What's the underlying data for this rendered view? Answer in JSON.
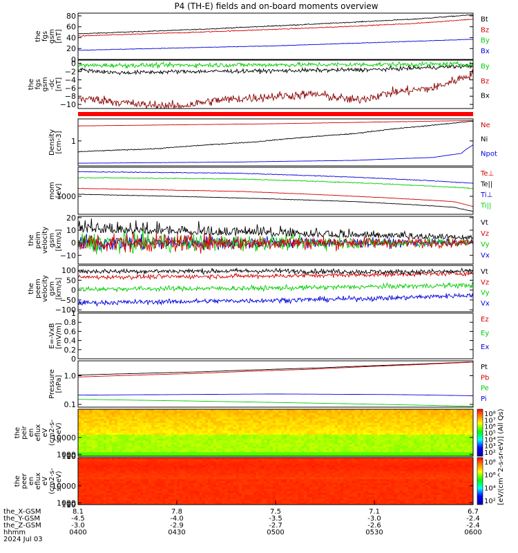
{
  "title": "P4 (TH-E) fields and on-board moments overview",
  "colors": {
    "black": "#000000",
    "red": "#d40000",
    "green": "#00cc00",
    "blue": "#0000dd",
    "bar_red": "#ff0000"
  },
  "chart_data": [
    {
      "type": "line",
      "id": "fgs_gsm",
      "ylabel_lines": [
        "the",
        "fgs",
        "gsm",
        "[nT]"
      ],
      "yticks": [
        0,
        20,
        40,
        60,
        80
      ],
      "ylim": [
        0,
        85
      ],
      "legend": [
        {
          "name": "Bt",
          "color": "#000000"
        },
        {
          "name": "Bz",
          "color": "#d40000"
        },
        {
          "name": "By",
          "color": "#00cc00"
        },
        {
          "name": "Bx",
          "color": "#0000dd"
        }
      ],
      "series": [
        {
          "name": "Bt",
          "color": "#000000",
          "knots": [
            [
              0,
              47
            ],
            [
              0.3,
              55
            ],
            [
              0.6,
              65
            ],
            [
              0.85,
              74
            ],
            [
              1,
              82
            ]
          ],
          "noise": 0.6
        },
        {
          "name": "Bz",
          "color": "#d40000",
          "knots": [
            [
              0,
              43
            ],
            [
              0.3,
              50
            ],
            [
              0.6,
              58
            ],
            [
              0.85,
              66
            ],
            [
              1,
              74
            ]
          ],
          "noise": 0.6
        },
        {
          "name": "By",
          "color": "#00cc00",
          "knots": [
            [
              0,
              -2
            ],
            [
              1,
              -2
            ]
          ],
          "noise": 0.3
        },
        {
          "name": "Bx",
          "color": "#0000dd",
          "knots": [
            [
              0,
              17
            ],
            [
              0.5,
              25
            ],
            [
              1,
              37
            ]
          ],
          "noise": 0.4
        }
      ]
    },
    {
      "type": "line",
      "id": "fgs_gsm_dc",
      "ylabel_lines": [
        "the",
        "fgs",
        "gsm",
        "-dc",
        "[nT]"
      ],
      "yticks": [
        -10,
        -8,
        -6,
        -4,
        -2,
        0
      ],
      "ylim": [
        -11,
        0.8
      ],
      "legend": [
        {
          "name": "By",
          "color": "#00cc00"
        },
        {
          "name": "Bz",
          "color": "#d40000"
        },
        {
          "name": "Bx",
          "color": "#000000"
        }
      ],
      "series": [
        {
          "name": "Bz",
          "color": "#8b0000",
          "knots": [
            [
              0,
              -8.5
            ],
            [
              0.07,
              -9
            ],
            [
              0.15,
              -10
            ],
            [
              0.25,
              -10.5
            ],
            [
              0.35,
              -9
            ],
            [
              0.5,
              -8
            ],
            [
              0.6,
              -7.5
            ],
            [
              0.7,
              -9
            ],
            [
              0.8,
              -7
            ],
            [
              0.9,
              -6
            ],
            [
              1,
              -2.5
            ]
          ],
          "noise": 0.8
        },
        {
          "name": "Bx",
          "color": "#000000",
          "knots": [
            [
              0,
              -1.5
            ],
            [
              0.1,
              -2.3
            ],
            [
              0.25,
              -2
            ],
            [
              0.5,
              -1.8
            ],
            [
              0.75,
              -1.5
            ],
            [
              1,
              -0.6
            ]
          ],
          "noise": 0.35
        },
        {
          "name": "By",
          "color": "#00cc00",
          "knots": [
            [
              0,
              -0.5
            ],
            [
              0.3,
              -0.4
            ],
            [
              0.6,
              -0.3
            ],
            [
              1,
              -0.2
            ]
          ],
          "noise": 0.4
        }
      ]
    },
    {
      "type": "line",
      "id": "density",
      "ylabel_lines": [
        "Density",
        "[cm-3]"
      ],
      "yticks": [
        1
      ],
      "ylim": [
        0.25,
        3.4
      ],
      "yscale": "log",
      "legend": [
        {
          "name": "Ne",
          "color": "#d40000"
        },
        {
          "name": "Ni",
          "color": "#000000"
        },
        {
          "name": "Npot",
          "color": "#0000dd"
        }
      ],
      "series": [
        {
          "name": "Ne",
          "color": "#d40000",
          "knots": [
            [
              0,
              2.3
            ],
            [
              0.5,
              2.6
            ],
            [
              1,
              3.1
            ]
          ],
          "noise": 0.01
        },
        {
          "name": "Ni",
          "color": "#000000",
          "knots": [
            [
              0,
              0.55
            ],
            [
              0.2,
              0.65
            ],
            [
              0.45,
              0.95
            ],
            [
              0.7,
              1.5
            ],
            [
              0.9,
              2.4
            ],
            [
              1,
              3.0
            ]
          ],
          "noise": 0.03
        },
        {
          "name": "Npot",
          "color": "#0000dd",
          "knots": [
            [
              0,
              0.29
            ],
            [
              0.4,
              0.31
            ],
            [
              0.7,
              0.34
            ],
            [
              0.9,
              0.4
            ],
            [
              0.97,
              0.5
            ],
            [
              1,
              0.8
            ]
          ],
          "noise": 0.01
        }
      ]
    },
    {
      "type": "line",
      "id": "temperature",
      "ylabel_lines": [
        "mom",
        "[eV]"
      ],
      "yticks": [
        1000
      ],
      "ylim": [
        300,
        7000
      ],
      "yscale": "log",
      "legend": [
        {
          "name": "Te⊥",
          "color": "#d40000"
        },
        {
          "name": "Te||",
          "color": "#000000"
        },
        {
          "name": "Ti⊥",
          "color": "#0000dd"
        },
        {
          "name": "Ti||",
          "color": "#00cc00"
        }
      ],
      "series": [
        {
          "name": "Ti⊥",
          "color": "#0000dd",
          "knots": [
            [
              0,
              5200
            ],
            [
              0.4,
              4700
            ],
            [
              0.7,
              3600
            ],
            [
              1,
              2400
            ]
          ],
          "noise": 0.03
        },
        {
          "name": "Ti||",
          "color": "#00cc00",
          "knots": [
            [
              0,
              3500
            ],
            [
              0.4,
              3200
            ],
            [
              0.7,
              2500
            ],
            [
              1,
              1700
            ]
          ],
          "noise": 0.04
        },
        {
          "name": "Te⊥",
          "color": "#d40000",
          "knots": [
            [
              0,
              1700
            ],
            [
              0.4,
              1400
            ],
            [
              0.7,
              1000
            ],
            [
              0.95,
              700
            ],
            [
              1,
              500
            ]
          ],
          "noise": 0.02
        },
        {
          "name": "Te||",
          "color": "#000000",
          "knots": [
            [
              0,
              1150
            ],
            [
              0.4,
              900
            ],
            [
              0.7,
              700
            ],
            [
              0.95,
              480
            ],
            [
              1,
              360
            ]
          ],
          "noise": 0.02
        }
      ]
    },
    {
      "type": "line",
      "id": "peim_velocity",
      "ylabel_lines": [
        "the",
        "peim",
        "velocity",
        "gsm",
        "[km/s]"
      ],
      "yticks": [
        -10,
        0,
        10,
        20
      ],
      "ylim": [
        -17,
        21
      ],
      "legend": [
        {
          "name": "Vt",
          "color": "#000000"
        },
        {
          "name": "Vz",
          "color": "#d40000"
        },
        {
          "name": "Vy",
          "color": "#00cc00"
        },
        {
          "name": "Vx",
          "color": "#0000dd"
        }
      ],
      "series": [
        {
          "name": "Vx",
          "color": "#0000dd",
          "knots": [
            [
              0,
              0
            ],
            [
              1,
              0
            ]
          ],
          "noise": 4,
          "decay": true
        },
        {
          "name": "Vy",
          "color": "#00cc00",
          "knots": [
            [
              0,
              0
            ],
            [
              1,
              0
            ]
          ],
          "noise": 5,
          "decay": true
        },
        {
          "name": "Vz",
          "color": "#d40000",
          "knots": [
            [
              0,
              0
            ],
            [
              1,
              0
            ]
          ],
          "noise": 5,
          "decay": true
        },
        {
          "name": "Vt",
          "color": "#000000",
          "knots": [
            [
              0,
              8
            ],
            [
              0.5,
              5
            ],
            [
              1,
              2.5
            ]
          ],
          "noise": 6,
          "decay": true,
          "positive": true
        }
      ]
    },
    {
      "type": "line",
      "id": "peem_velocity",
      "ylabel_lines": [
        "the",
        "peem",
        "velocity",
        "gsm",
        "[km/s]"
      ],
      "yticks": [
        -100,
        -50,
        0,
        50,
        100
      ],
      "ylim": [
        -110,
        125
      ],
      "legend": [
        {
          "name": "Vt",
          "color": "#000000"
        },
        {
          "name": "Vz",
          "color": "#d40000"
        },
        {
          "name": "Vy",
          "color": "#00cc00"
        },
        {
          "name": "Vx",
          "color": "#0000dd"
        }
      ],
      "series": [
        {
          "name": "Vx",
          "color": "#0000dd",
          "knots": [
            [
              0,
              -65
            ],
            [
              0.5,
              -52
            ],
            [
              0.8,
              -40
            ],
            [
              1,
              -25
            ]
          ],
          "noise": 9
        },
        {
          "name": "Vy",
          "color": "#00cc00",
          "knots": [
            [
              0,
              5
            ],
            [
              0.5,
              10
            ],
            [
              1,
              25
            ]
          ],
          "noise": 9
        },
        {
          "name": "Vz",
          "color": "#d40000",
          "knots": [
            [
              0,
              65
            ],
            [
              0.5,
              72
            ],
            [
              0.8,
              80
            ],
            [
              1,
              85
            ]
          ],
          "noise": 8
        },
        {
          "name": "Vt",
          "color": "#000000",
          "knots": [
            [
              0,
              95
            ],
            [
              0.5,
              97
            ],
            [
              0.8,
              92
            ],
            [
              1,
              95
            ]
          ],
          "noise": 9
        }
      ]
    },
    {
      "type": "line",
      "id": "efield",
      "ylabel_lines": [
        "E=-VxB",
        "[mV/m]"
      ],
      "yticks": [
        0.0,
        0.2,
        0.4,
        0.6,
        0.8,
        1.0
      ],
      "ylim": [
        0,
        1
      ],
      "legend": [
        {
          "name": "Ez",
          "color": "#d40000"
        },
        {
          "name": "Ey",
          "color": "#00cc00"
        },
        {
          "name": "Ex",
          "color": "#0000dd"
        }
      ],
      "series": []
    },
    {
      "type": "line",
      "id": "pressure",
      "ylabel_lines": [
        "Pressure",
        "[nPa]"
      ],
      "yticks": [
        0.1,
        1.0
      ],
      "ytick_labels": [
        "0.1",
        "1.0"
      ],
      "ylim": [
        0.08,
        3.3
      ],
      "yscale": "log",
      "legend": [
        {
          "name": "Pt",
          "color": "#000000"
        },
        {
          "name": "Pb",
          "color": "#d40000"
        },
        {
          "name": "Pe",
          "color": "#00cc00"
        },
        {
          "name": "Pi",
          "color": "#0000dd"
        }
      ],
      "series": [
        {
          "name": "Pt",
          "color": "#000000",
          "knots": [
            [
              0,
              1.05
            ],
            [
              0.3,
              1.35
            ],
            [
              0.6,
              1.85
            ],
            [
              0.85,
              2.5
            ],
            [
              1,
              3.0
            ]
          ],
          "noise": 0.003
        },
        {
          "name": "Pb",
          "color": "#d40000",
          "knots": [
            [
              0,
              0.9
            ],
            [
              0.3,
              1.2
            ],
            [
              0.6,
              1.7
            ],
            [
              0.85,
              2.4
            ],
            [
              1,
              2.95
            ]
          ],
          "noise": 0.003
        },
        {
          "name": "Pi",
          "color": "#0000dd",
          "knots": [
            [
              0,
              0.21
            ],
            [
              0.5,
              0.23
            ],
            [
              0.8,
              0.22
            ],
            [
              1,
              0.2
            ]
          ],
          "noise": 0.002
        },
        {
          "name": "Pe",
          "color": "#00cc00",
          "knots": [
            [
              0,
              0.15
            ],
            [
              0.3,
              0.13
            ],
            [
              0.6,
              0.11
            ],
            [
              0.85,
              0.095
            ],
            [
              1,
              0.085
            ]
          ],
          "noise": 0.001
        }
      ]
    },
    {
      "type": "heatmap",
      "id": "peir_eflux",
      "ylabel_lines": [
        "the",
        "peir",
        "en",
        "eflux",
        "eV",
        "(cm2-s-",
        "sr-eV)"
      ],
      "yticks": [
        10,
        100,
        1000,
        10000
      ],
      "ytick_labels": [
        "10",
        "100",
        "1000",
        "10000"
      ],
      "ylim": [
        7,
        25000
      ]
    },
    {
      "type": "heatmap",
      "id": "peer_eflux",
      "ylabel_lines": [
        "the",
        "peer",
        "en",
        "eflux",
        "eV",
        "(cm2-s-",
        "sr-eV)"
      ],
      "yticks": [
        10,
        100,
        1000,
        10000
      ],
      "ytick_labels": [
        "10",
        "100",
        "1000",
        "10000"
      ],
      "ylim": [
        7,
        25000
      ]
    }
  ],
  "colorbar_ticks": [
    "10⁸",
    "10⁷",
    "10⁶",
    "10⁵",
    "10⁴",
    "10³",
    "10²"
  ],
  "colorbar_ticks2": [
    "10⁸",
    "10⁶",
    "10⁴",
    "10²"
  ],
  "colorbar_label": "[eV/(cm^2-s-sr-eV)] (All Qs)",
  "xaxis": {
    "rows": [
      {
        "label": "the_X-GSM",
        "values": [
          "8.1",
          "7.8",
          "7.5",
          "7.1",
          "6.7"
        ]
      },
      {
        "label": "the_Y-GSM",
        "values": [
          "-4.5",
          "-4.0",
          "-3.5",
          "-3.0",
          "-2.4"
        ]
      },
      {
        "label": "the_Z-GSM",
        "values": [
          "-3.0",
          "-2.9",
          "-2.7",
          "-2.6",
          "-2.4"
        ]
      },
      {
        "label": "hhmm",
        "values": [
          "0400",
          "0430",
          "0500",
          "0530",
          "0600"
        ]
      }
    ],
    "date": "2024 Jul 03"
  }
}
